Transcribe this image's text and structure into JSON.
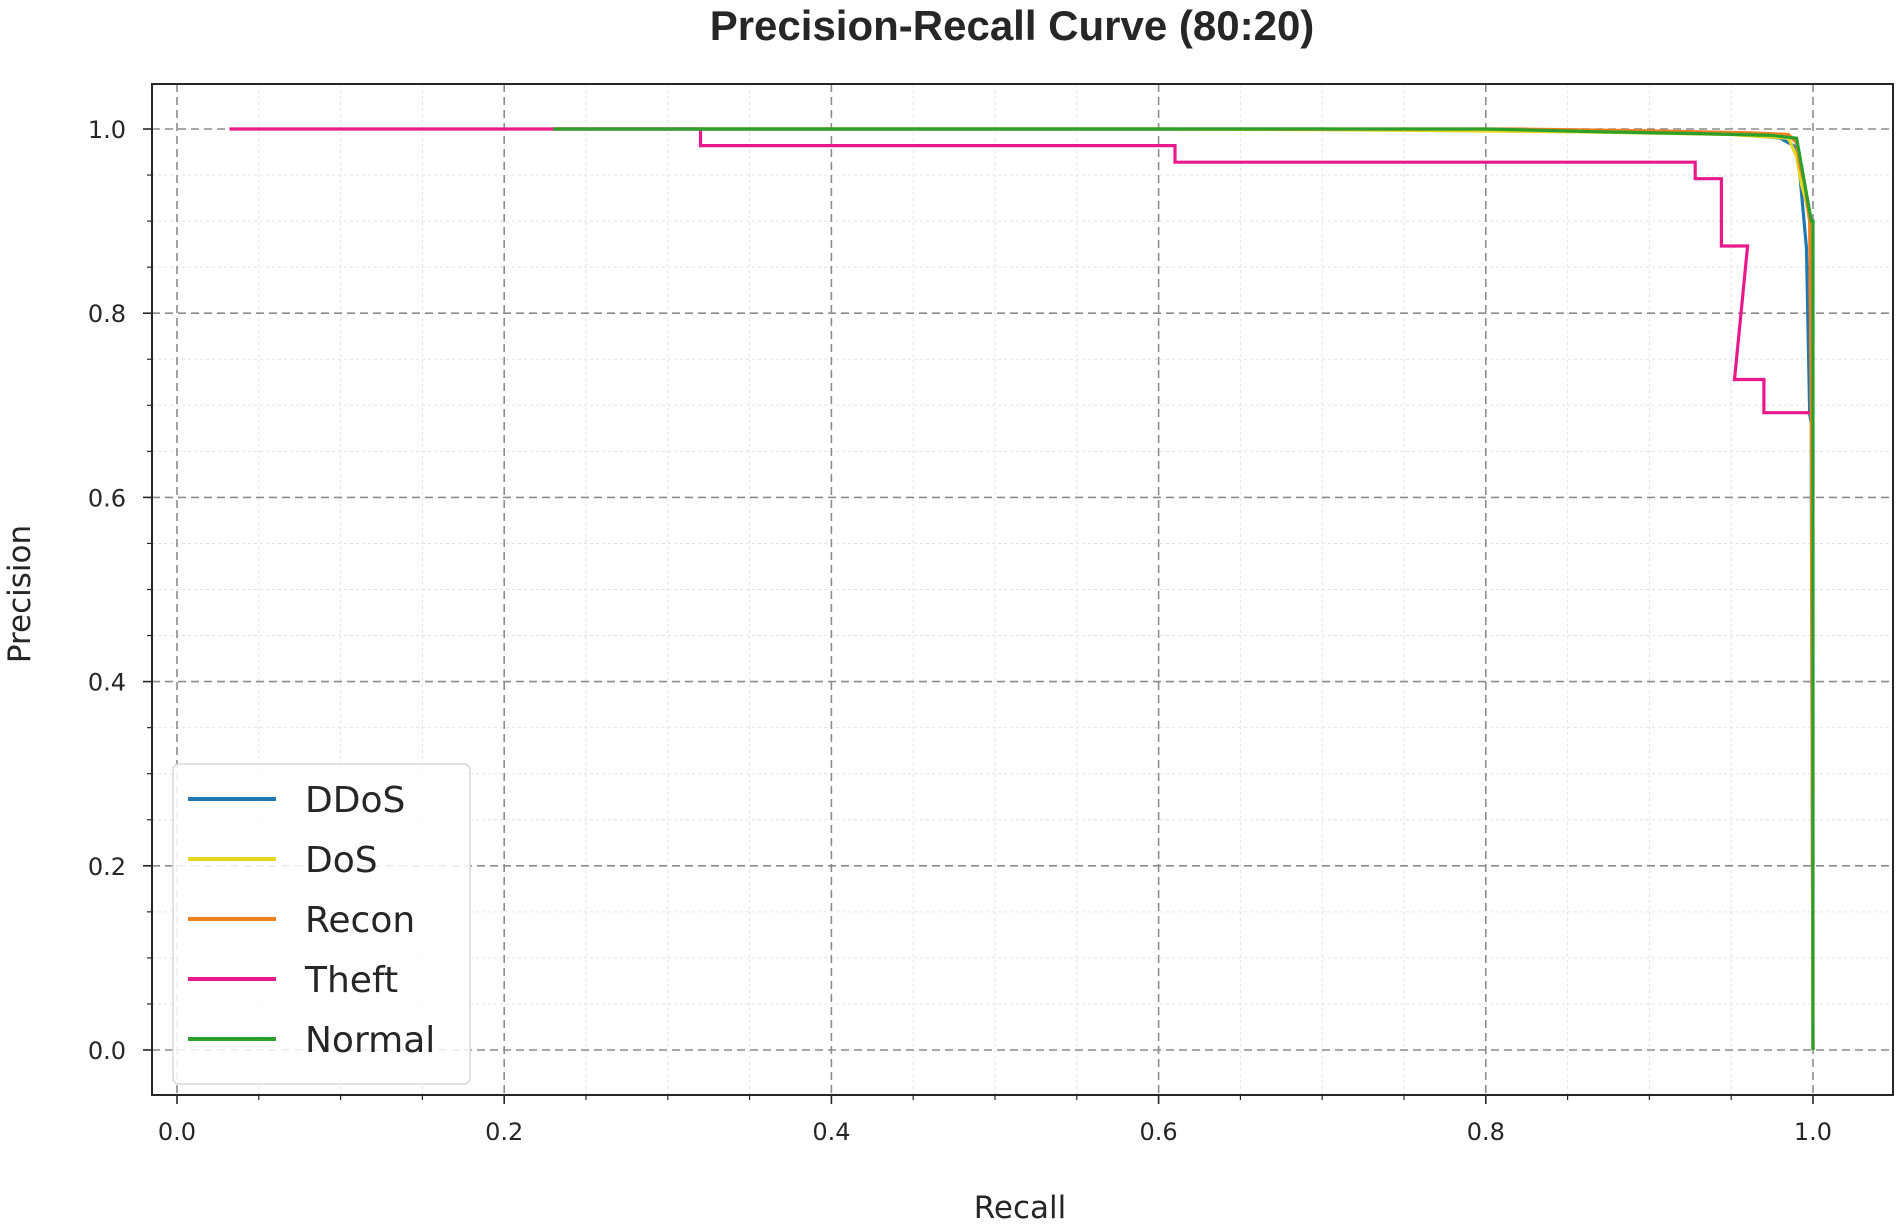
{
  "chart_data": {
    "type": "line",
    "title": "Precision-Recall Curve (80:20)",
    "xlabel": "Recall",
    "ylabel": "Precision",
    "xlim": [
      -0.03,
      1.05
    ],
    "ylim": [
      -0.05,
      1.05
    ],
    "xticks": [
      0.0,
      0.2,
      0.4,
      0.6,
      0.8,
      1.0
    ],
    "xtick_labels": [
      "0.0",
      "0.2",
      "0.4",
      "0.6",
      "0.8",
      "1.0"
    ],
    "yticks": [
      0.0,
      0.2,
      0.4,
      0.6,
      0.8,
      1.0
    ],
    "ytick_labels": [
      "0.0",
      "0.2",
      "0.4",
      "0.6",
      "0.8",
      "1.0"
    ],
    "grid": true,
    "legend_position": "lower-left",
    "series": [
      {
        "name": "DDoS",
        "color": "#1f77b4",
        "points": [
          [
            0.23,
            1.0
          ],
          [
            0.7,
            1.0
          ],
          [
            0.86,
            0.997
          ],
          [
            0.95,
            0.995
          ],
          [
            0.98,
            0.99
          ],
          [
            0.99,
            0.98
          ],
          [
            0.992,
            0.95
          ],
          [
            0.994,
            0.91
          ],
          [
            0.996,
            0.87
          ],
          [
            0.998,
            0.69
          ],
          [
            0.999,
            0.68
          ],
          [
            0.999,
            0.6
          ],
          [
            1.0,
            0.0
          ]
        ]
      },
      {
        "name": "DoS",
        "color": "#e6d820",
        "points": [
          [
            0.23,
            1.0
          ],
          [
            0.6,
            1.0
          ],
          [
            0.72,
            0.999
          ],
          [
            0.85,
            0.997
          ],
          [
            0.95,
            0.994
          ],
          [
            0.985,
            0.99
          ],
          [
            0.99,
            0.97
          ],
          [
            0.993,
            0.94
          ],
          [
            0.996,
            0.92
          ],
          [
            0.998,
            0.9
          ],
          [
            0.999,
            0.7
          ],
          [
            1.0,
            0.0
          ]
        ]
      },
      {
        "name": "Recon",
        "color": "#f07f22",
        "points": [
          [
            0.23,
            1.0
          ],
          [
            0.82,
            1.0
          ],
          [
            0.9,
            0.998
          ],
          [
            0.96,
            0.996
          ],
          [
            0.985,
            0.994
          ],
          [
            0.99,
            0.985
          ],
          [
            0.992,
            0.96
          ],
          [
            0.995,
            0.94
          ],
          [
            0.998,
            0.9
          ],
          [
            0.999,
            0.69
          ],
          [
            1.0,
            0.0
          ]
        ]
      },
      {
        "name": "Theft",
        "color": "#e8198b",
        "points": [
          [
            0.032,
            1.0
          ],
          [
            0.32,
            1.0
          ],
          [
            0.32,
            0.982
          ],
          [
            0.61,
            0.982
          ],
          [
            0.61,
            0.964
          ],
          [
            0.928,
            0.964
          ],
          [
            0.928,
            0.946
          ],
          [
            0.944,
            0.946
          ],
          [
            0.944,
            0.873
          ],
          [
            0.96,
            0.873
          ],
          [
            0.96,
            0.873
          ],
          [
            0.952,
            0.728
          ],
          [
            0.97,
            0.728
          ],
          [
            0.97,
            0.692
          ],
          [
            0.997,
            0.692
          ],
          [
            0.997,
            0.69
          ]
        ]
      },
      {
        "name": "Normal",
        "color": "#2ca02c",
        "points": [
          [
            0.23,
            1.0
          ],
          [
            0.8,
            1.0
          ],
          [
            0.87,
            0.997
          ],
          [
            0.93,
            0.995
          ],
          [
            0.975,
            0.993
          ],
          [
            0.99,
            0.99
          ],
          [
            0.992,
            0.97
          ],
          [
            0.995,
            0.94
          ],
          [
            0.997,
            0.92
          ],
          [
            0.999,
            0.9
          ],
          [
            1.0,
            0.9
          ],
          [
            1.0,
            0.0
          ]
        ]
      }
    ]
  }
}
